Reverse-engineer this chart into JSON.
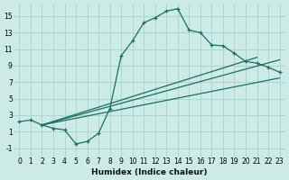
{
  "xlabel": "Humidex (Indice chaleur)",
  "bg_color": "#cceae6",
  "grid_color": "#aed4d0",
  "line_color": "#1a6e62",
  "xlim": [
    -0.5,
    23.5
  ],
  "ylim": [
    -2,
    16.5
  ],
  "xticks": [
    0,
    1,
    2,
    3,
    4,
    5,
    6,
    7,
    8,
    9,
    10,
    11,
    12,
    13,
    14,
    15,
    16,
    17,
    18,
    19,
    20,
    21,
    22,
    23
  ],
  "yticks": [
    -1,
    1,
    3,
    5,
    7,
    9,
    11,
    13,
    15
  ],
  "curve_x": [
    0,
    1,
    2,
    3,
    4,
    5,
    6,
    7,
    8,
    9,
    10,
    11,
    12,
    13,
    14,
    15,
    16,
    17,
    18,
    19,
    20,
    21,
    22,
    23
  ],
  "curve_y": [
    2.2,
    2.4,
    1.8,
    1.4,
    1.2,
    -0.5,
    -0.2,
    0.8,
    3.8,
    10.2,
    12.0,
    14.2,
    14.8,
    15.6,
    15.9,
    13.3,
    13.0,
    11.5,
    11.4,
    10.5,
    9.5,
    9.3,
    8.8,
    8.2
  ],
  "line1_x": [
    2,
    23
  ],
  "line1_y": [
    1.8,
    7.5
  ],
  "line2_x": [
    2,
    23
  ],
  "line2_y": [
    1.8,
    9.7
  ],
  "line3_x": [
    2,
    21
  ],
  "line3_y": [
    1.8,
    10.0
  ],
  "xlabel_fontsize": 6.5,
  "tick_fontsize": 5.5
}
